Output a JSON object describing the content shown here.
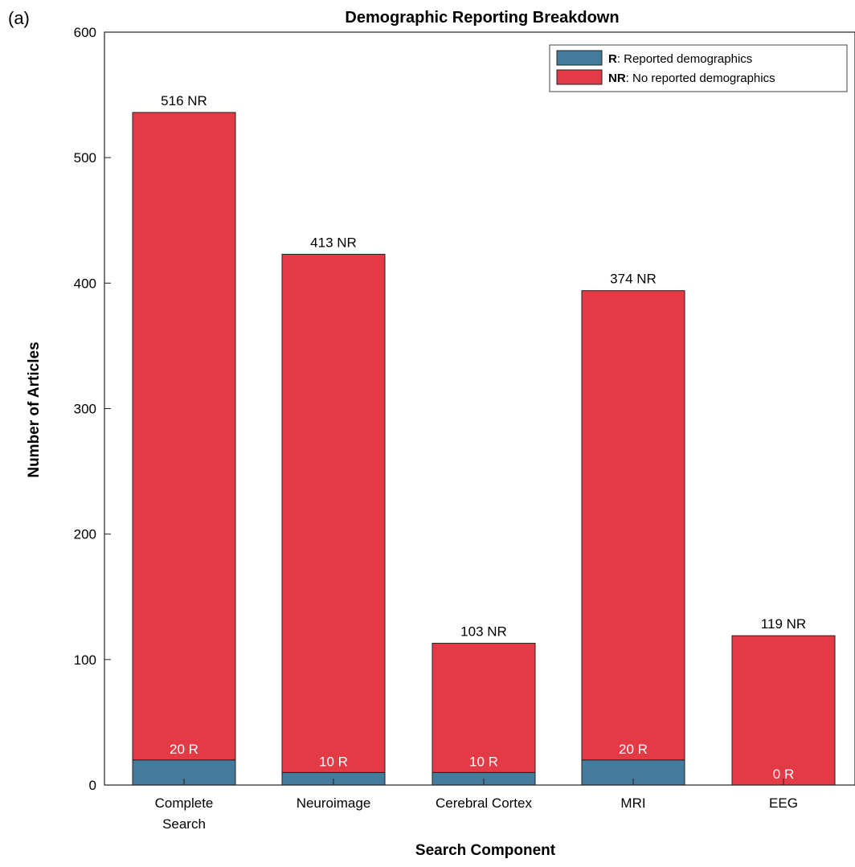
{
  "panel_label": "(a)",
  "chart_data": {
    "type": "bar",
    "stacked": true,
    "title": "Demographic Reporting Breakdown",
    "xlabel": "Search Component",
    "ylabel": "Number of Articles",
    "categories": [
      "Complete Search",
      "Neuroimage",
      "Cerebral Cortex",
      "MRI",
      "EEG"
    ],
    "category_lines": [
      [
        "Complete",
        "Search"
      ],
      [
        "Neuroimage"
      ],
      [
        "Cerebral Cortex"
      ],
      [
        "MRI"
      ],
      [
        "EEG"
      ]
    ],
    "ylim": [
      0,
      600
    ],
    "yticks": [
      "0",
      "100",
      "200",
      "300",
      "400",
      "500",
      "600"
    ],
    "grid": false,
    "legend_position": "top-right",
    "series": [
      {
        "key": "R",
        "values": [
          20,
          10,
          10,
          20,
          0
        ],
        "color": "#447a9c",
        "labels": [
          "20 R",
          "10 R",
          "10 R",
          "20 R",
          "0 R"
        ]
      },
      {
        "key": "NR",
        "values": [
          516,
          413,
          103,
          374,
          119
        ],
        "color": "#e43a45",
        "labels": [
          "516 NR",
          "413 NR",
          "103 NR",
          "374 NR",
          "119 NR"
        ]
      }
    ],
    "legend": [
      {
        "key_text": "R",
        "text": ": Reported demographics",
        "color": "#447a9c"
      },
      {
        "key_text": "NR",
        "text": ": No reported demographics",
        "color": "#e43a45"
      }
    ]
  }
}
